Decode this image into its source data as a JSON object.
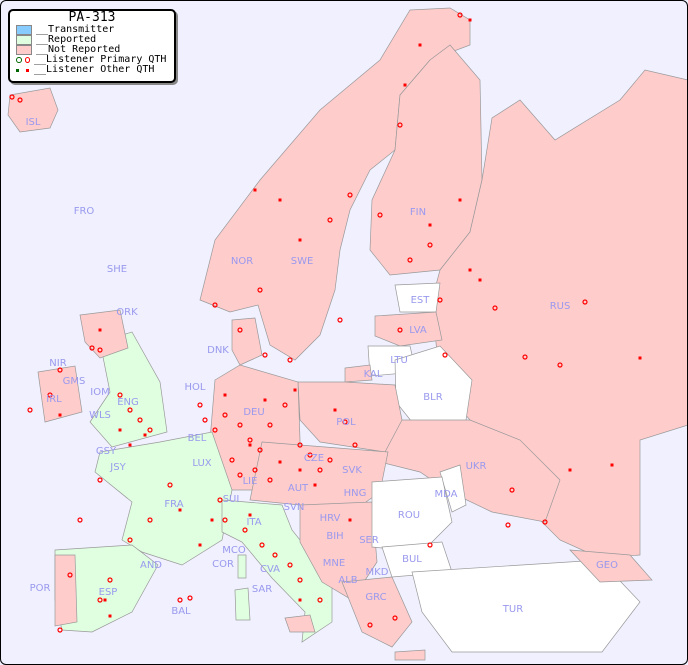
{
  "title": "PA-313",
  "legend": {
    "transmitter": "__Transmitter",
    "reported": "__Reported",
    "not_reported": "__Not Reported",
    "primary_qth": "__Listener Primary QTH",
    "other_qth": "__Listener Other QTH"
  },
  "colors": {
    "sea": "#f0f0ff",
    "transmitter": "#88ccff",
    "reported": "#e0ffe0",
    "not_reported": "#ffcccc",
    "unlisted": "#ffffff",
    "listener_reported": "#006600",
    "listener_not_reported": "#ff0000",
    "label": "#9999ee"
  },
  "countries": {
    "reported": [
      "ENG",
      "WLS",
      "FRA",
      "ESP",
      "ITA",
      "SUI",
      "BEL",
      "LUX",
      "GSY",
      "JSY",
      "COR",
      "SAR",
      "MCO",
      "AND",
      "BAL",
      "CVA",
      "IOM"
    ],
    "not_reported": [
      "ISL",
      "NOR",
      "SWE",
      "FIN",
      "RUS",
      "LVA",
      "POL",
      "DEU",
      "HOL",
      "DNK",
      "CZE",
      "AUT",
      "SVK",
      "HNG",
      "SVN",
      "HRV",
      "BIH",
      "SER",
      "MNE",
      "ALB",
      "MKD",
      "GRC",
      "UKR",
      "IRL",
      "NIR",
      "GMS",
      "POR",
      "KAL",
      "LIE",
      "SHE",
      "ORK",
      "GEO"
    ],
    "unlisted": [
      "EST",
      "LTU",
      "BLR",
      "MDA",
      "ROU",
      "BUL",
      "TUR",
      "FRO"
    ]
  },
  "labels": [
    "ISL",
    "FRO",
    "SHE",
    "ORK",
    "NOR",
    "SWE",
    "FIN",
    "EST",
    "LVA",
    "LTU",
    "KAL",
    "RUS",
    "BLR",
    "UKR",
    "MDA",
    "POL",
    "DNK",
    "HOL",
    "DEU",
    "BEL",
    "LUX",
    "CZE",
    "SVK",
    "HNG",
    "AUT",
    "LIE",
    "SUI",
    "SVN",
    "HRV",
    "ROU",
    "BIH",
    "SER",
    "BUL",
    "MNE",
    "ALB",
    "MKD",
    "GRC",
    "TUR",
    "GEO",
    "ITA",
    "MCO",
    "COR",
    "CVA",
    "SAR",
    "FRA",
    "AND",
    "ESP",
    "POR",
    "BAL",
    "IRL",
    "NIR",
    "GMS",
    "IOM",
    "WLS",
    "ENG",
    "GSY",
    "JSY"
  ]
}
